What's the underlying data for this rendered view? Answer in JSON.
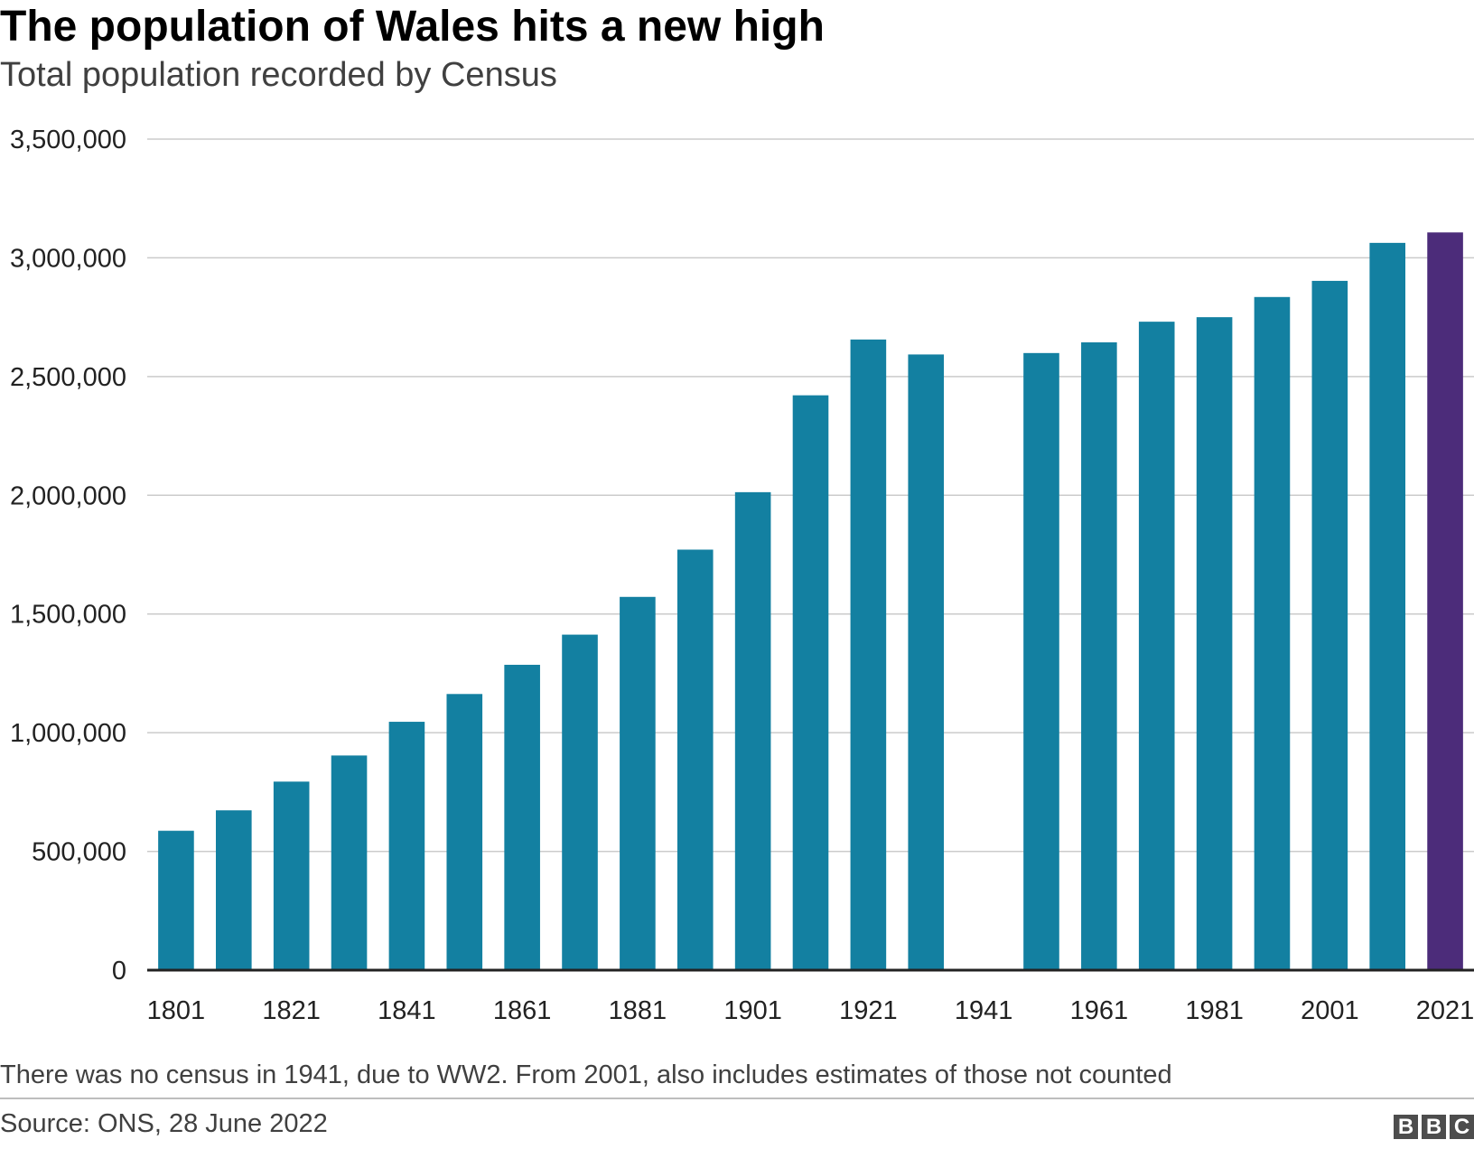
{
  "header": {
    "title": "The population of Wales hits a new high",
    "subtitle": "Total population recorded by Census"
  },
  "footer": {
    "note": "There was no census in 1941, due to WW2. From 2001, also includes estimates of those not counted",
    "source": "Source: ONS, 28 June 2022",
    "logo_letters": [
      "B",
      "B",
      "C"
    ]
  },
  "colors": {
    "bar": "#1380A1",
    "highlight": "#4C2C7A",
    "grid": "#cbcbcb",
    "axis": "#222222"
  },
  "chart_data": {
    "type": "bar",
    "title": "The population of Wales hits a new high",
    "subtitle": "Total population recorded by Census",
    "xlabel": "",
    "ylabel": "",
    "ylim": [
      0,
      3500000
    ],
    "yticks": [
      0,
      500000,
      1000000,
      1500000,
      2000000,
      2500000,
      3000000,
      3500000
    ],
    "ytick_labels": [
      "0",
      "500,000",
      "1,000,000",
      "1,500,000",
      "2,000,000",
      "2,500,000",
      "3,000,000",
      "3,500,000"
    ],
    "xtick_labels": [
      "1801",
      "1821",
      "1841",
      "1861",
      "1881",
      "1901",
      "1921",
      "1941",
      "1961",
      "1981",
      "2001",
      "2021"
    ],
    "grid": true,
    "highlight_category": "2021",
    "categories": [
      "1801",
      "1811",
      "1821",
      "1831",
      "1841",
      "1851",
      "1861",
      "1871",
      "1881",
      "1891",
      "1901",
      "1911",
      "1921",
      "1931",
      "1941",
      "1951",
      "1961",
      "1971",
      "1981",
      "1991",
      "2001",
      "2011",
      "2021"
    ],
    "values": [
      587000,
      673000,
      794000,
      904000,
      1046000,
      1163000,
      1286000,
      1413000,
      1572000,
      1771000,
      2013000,
      2421000,
      2656000,
      2593000,
      null,
      2599000,
      2644000,
      2731000,
      2750000,
      2835000,
      2903000,
      3063000,
      3107000
    ]
  }
}
